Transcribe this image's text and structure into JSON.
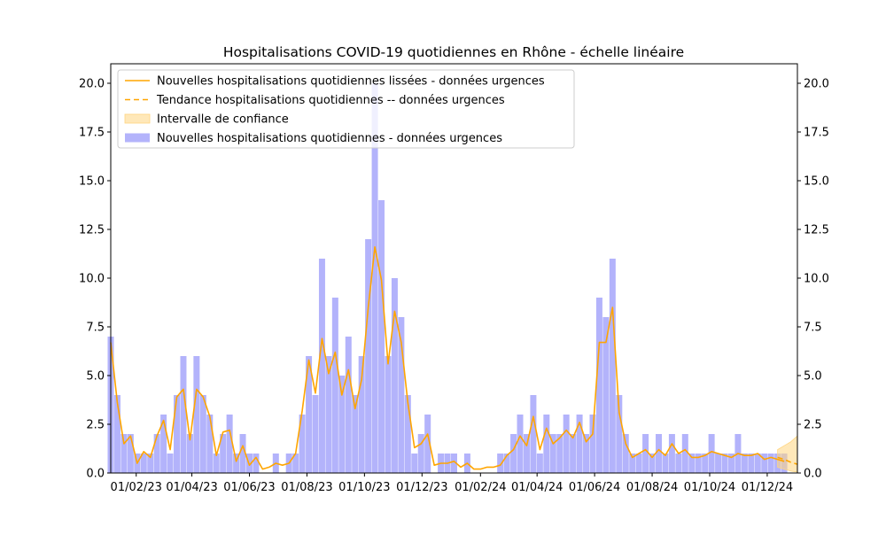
{
  "chart_data": {
    "type": "bar",
    "title": "Hospitalisations COVID-19 quotidiennes en Rhône - échelle linéaire",
    "xlabel": "",
    "ylabel": "",
    "ylim": [
      0,
      21
    ],
    "y_ticks": [
      0.0,
      2.5,
      5.0,
      7.5,
      10.0,
      12.5,
      15.0,
      17.5,
      20.0
    ],
    "y_tick_labels": [
      "0.0",
      "2.5",
      "5.0",
      "7.5",
      "10.0",
      "12.5",
      "15.0",
      "17.5",
      "20.0"
    ],
    "secondary_y_axis": true,
    "x_tick_labels": [
      "01/02/23",
      "01/04/23",
      "01/06/23",
      "01/08/23",
      "01/10/23",
      "01/12/23",
      "01/02/24",
      "01/04/24",
      "01/06/24",
      "01/08/24",
      "01/10/24",
      "01/12/24"
    ],
    "x_tick_dates": [
      "2023-02-01",
      "2023-04-01",
      "2023-06-01",
      "2023-08-01",
      "2023-10-01",
      "2023-12-01",
      "2024-02-01",
      "2024-04-01",
      "2024-06-01",
      "2024-08-01",
      "2024-10-01",
      "2024-12-01"
    ],
    "x_range": [
      "2023-01-05",
      "2025-01-02"
    ],
    "grid": false,
    "legend_position": "top-left",
    "legend": [
      {
        "label": "Nouvelles hospitalisations quotidiennes lissées - données urgences",
        "kind": "line"
      },
      {
        "label": "Tendance hospitalisations quotidiennes -- données urgences",
        "kind": "dashed"
      },
      {
        "label": "Intervalle de confiance",
        "kind": "band"
      },
      {
        "label": "Nouvelles hospitalisations quotidiennes - données urgences",
        "kind": "bar"
      }
    ],
    "colors": {
      "bars": "#b3b3fb",
      "smoothed": "#ffa500",
      "trend": "#ffa500",
      "band": "#ffd580"
    },
    "series": [
      {
        "name": "Nouvelles hospitalisations quotidiennes lissées - données urgences",
        "type": "line",
        "x": [
          "2023-01-05",
          "2023-01-12",
          "2023-01-19",
          "2023-01-26",
          "2023-02-02",
          "2023-02-09",
          "2023-02-16",
          "2023-02-23",
          "2023-03-02",
          "2023-03-09",
          "2023-03-16",
          "2023-03-23",
          "2023-03-30",
          "2023-04-06",
          "2023-04-13",
          "2023-04-20",
          "2023-04-27",
          "2023-05-04",
          "2023-05-11",
          "2023-05-18",
          "2023-05-25",
          "2023-06-01",
          "2023-06-08",
          "2023-06-15",
          "2023-06-22",
          "2023-06-29",
          "2023-07-06",
          "2023-07-13",
          "2023-07-20",
          "2023-07-27",
          "2023-08-03",
          "2023-08-10",
          "2023-08-17",
          "2023-08-24",
          "2023-08-31",
          "2023-09-07",
          "2023-09-14",
          "2023-09-21",
          "2023-09-28",
          "2023-10-05",
          "2023-10-12",
          "2023-10-19",
          "2023-10-26",
          "2023-11-02",
          "2023-11-09",
          "2023-11-16",
          "2023-11-23",
          "2023-11-30",
          "2023-12-07",
          "2023-12-14",
          "2023-12-21",
          "2023-12-28",
          "2024-01-04",
          "2024-01-11",
          "2024-01-18",
          "2024-01-25",
          "2024-02-01",
          "2024-02-08",
          "2024-02-15",
          "2024-02-22",
          "2024-02-29",
          "2024-03-07",
          "2024-03-14",
          "2024-03-21",
          "2024-03-28",
          "2024-04-04",
          "2024-04-11",
          "2024-04-18",
          "2024-04-25",
          "2024-05-02",
          "2024-05-09",
          "2024-05-16",
          "2024-05-23",
          "2024-05-30",
          "2024-06-06",
          "2024-06-13",
          "2024-06-20",
          "2024-06-27",
          "2024-07-04",
          "2024-07-11",
          "2024-07-18",
          "2024-07-25",
          "2024-08-01",
          "2024-08-08",
          "2024-08-15",
          "2024-08-22",
          "2024-08-29",
          "2024-09-05",
          "2024-09-12",
          "2024-09-19",
          "2024-09-26",
          "2024-10-03",
          "2024-10-10",
          "2024-10-17",
          "2024-10-24",
          "2024-10-31",
          "2024-11-07",
          "2024-11-14",
          "2024-11-21",
          "2024-11-28",
          "2024-12-05",
          "2024-12-12",
          "2024-12-19"
        ],
        "values": [
          6.7,
          3.6,
          1.5,
          1.9,
          0.5,
          1.1,
          0.8,
          1.9,
          2.7,
          1.2,
          3.9,
          4.3,
          1.7,
          4.3,
          3.9,
          2.9,
          0.9,
          2.1,
          2.2,
          0.6,
          1.4,
          0.4,
          0.8,
          0.2,
          0.3,
          0.5,
          0.4,
          0.5,
          1.0,
          3.2,
          5.8,
          4.1,
          6.9,
          5.1,
          6.2,
          4.0,
          5.3,
          3.3,
          4.8,
          8.5,
          11.6,
          9.9,
          5.6,
          8.3,
          6.7,
          3.6,
          1.3,
          1.5,
          2.0,
          0.4,
          0.5,
          0.5,
          0.6,
          0.3,
          0.5,
          0.2,
          0.2,
          0.3,
          0.3,
          0.4,
          0.9,
          1.2,
          1.9,
          1.4,
          2.9,
          1.2,
          2.3,
          1.5,
          1.8,
          2.2,
          1.8,
          2.6,
          1.6,
          2.0,
          6.7,
          6.7,
          8.5,
          3.1,
          1.5,
          0.8,
          1.0,
          1.2,
          0.8,
          1.2,
          0.9,
          1.5,
          1.0,
          1.2,
          0.8,
          0.8,
          0.9,
          1.1,
          1.0,
          0.9,
          0.8,
          1.0,
          0.9,
          0.9,
          1.0,
          0.7,
          0.8,
          0.7,
          0.6
        ]
      },
      {
        "name": "Tendance hospitalisations quotidiennes -- données urgences",
        "type": "line",
        "dashed": true,
        "x": [
          "2024-12-12",
          "2024-12-19",
          "2024-12-26",
          "2025-01-02"
        ],
        "values": [
          0.8,
          0.7,
          0.55,
          0.45
        ]
      },
      {
        "name": "Intervalle de confiance",
        "type": "band",
        "x": [
          "2024-12-12",
          "2024-12-19",
          "2024-12-26",
          "2025-01-02"
        ],
        "lower": [
          0.3,
          0.2,
          0.1,
          0.05
        ],
        "upper": [
          1.2,
          1.4,
          1.6,
          1.9
        ]
      },
      {
        "name": "Nouvelles hospitalisations quotidiennes - données urgences",
        "type": "bar",
        "x": [
          "2023-01-05",
          "2023-01-12",
          "2023-01-19",
          "2023-01-26",
          "2023-02-02",
          "2023-02-09",
          "2023-02-16",
          "2023-02-23",
          "2023-03-02",
          "2023-03-09",
          "2023-03-16",
          "2023-03-23",
          "2023-03-30",
          "2023-04-06",
          "2023-04-13",
          "2023-04-20",
          "2023-04-27",
          "2023-05-04",
          "2023-05-11",
          "2023-05-18",
          "2023-05-25",
          "2023-06-01",
          "2023-06-08",
          "2023-06-15",
          "2023-06-22",
          "2023-06-29",
          "2023-07-06",
          "2023-07-13",
          "2023-07-20",
          "2023-07-27",
          "2023-08-03",
          "2023-08-10",
          "2023-08-17",
          "2023-08-24",
          "2023-08-31",
          "2023-09-07",
          "2023-09-14",
          "2023-09-21",
          "2023-09-28",
          "2023-10-05",
          "2023-10-12",
          "2023-10-19",
          "2023-10-26",
          "2023-11-02",
          "2023-11-09",
          "2023-11-16",
          "2023-11-23",
          "2023-11-30",
          "2023-12-07",
          "2023-12-14",
          "2023-12-21",
          "2023-12-28",
          "2024-01-04",
          "2024-01-11",
          "2024-01-18",
          "2024-01-25",
          "2024-02-01",
          "2024-02-08",
          "2024-02-15",
          "2024-02-22",
          "2024-02-29",
          "2024-03-07",
          "2024-03-14",
          "2024-03-21",
          "2024-03-28",
          "2024-04-04",
          "2024-04-11",
          "2024-04-18",
          "2024-04-25",
          "2024-05-02",
          "2024-05-09",
          "2024-05-16",
          "2024-05-23",
          "2024-05-30",
          "2024-06-06",
          "2024-06-13",
          "2024-06-20",
          "2024-06-27",
          "2024-07-04",
          "2024-07-11",
          "2024-07-18",
          "2024-07-25",
          "2024-08-01",
          "2024-08-08",
          "2024-08-15",
          "2024-08-22",
          "2024-08-29",
          "2024-09-05",
          "2024-09-12",
          "2024-09-19",
          "2024-09-26",
          "2024-10-03",
          "2024-10-10",
          "2024-10-17",
          "2024-10-24",
          "2024-10-31",
          "2024-11-07",
          "2024-11-14",
          "2024-11-21",
          "2024-11-28",
          "2024-12-05",
          "2024-12-12",
          "2024-12-19"
        ],
        "values": [
          7,
          4,
          2,
          2,
          1,
          1,
          1,
          2,
          3,
          1,
          4,
          6,
          2,
          6,
          4,
          3,
          1,
          2,
          3,
          1,
          2,
          1,
          1,
          0,
          0,
          1,
          0,
          1,
          1,
          3,
          6,
          4,
          11,
          6,
          9,
          5,
          7,
          4,
          6,
          12,
          20,
          14,
          6,
          10,
          8,
          4,
          1,
          2,
          3,
          0,
          1,
          1,
          1,
          0,
          1,
          0,
          0,
          0,
          0,
          1,
          1,
          2,
          3,
          2,
          4,
          1,
          3,
          2,
          2,
          3,
          2,
          3,
          2,
          3,
          9,
          8,
          11,
          4,
          2,
          1,
          1,
          2,
          1,
          2,
          1,
          2,
          1,
          2,
          1,
          1,
          1,
          2,
          1,
          1,
          1,
          2,
          1,
          1,
          1,
          1,
          1,
          1,
          1
        ]
      }
    ]
  }
}
